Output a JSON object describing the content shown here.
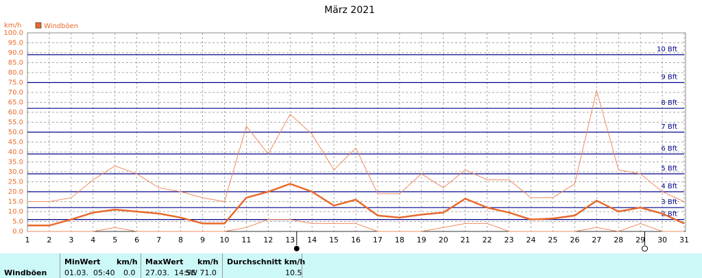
{
  "chart_data": {
    "type": "line",
    "title": "März 2021",
    "y_unit": "km/h",
    "x": [
      1,
      2,
      3,
      4,
      5,
      6,
      7,
      8,
      9,
      10,
      11,
      12,
      13,
      14,
      15,
      16,
      17,
      18,
      19,
      20,
      21,
      22,
      23,
      24,
      25,
      26,
      27,
      28,
      29,
      30,
      31
    ],
    "xlim": [
      1,
      31
    ],
    "xticks": [
      1,
      2,
      3,
      4,
      5,
      6,
      7,
      8,
      9,
      10,
      11,
      12,
      13,
      14,
      15,
      16,
      17,
      18,
      19,
      20,
      21,
      22,
      23,
      24,
      25,
      26,
      27,
      28,
      29,
      30,
      31
    ],
    "ylim": [
      0,
      100
    ],
    "yticks": [
      {
        "value": 0,
        "label": "0.0"
      },
      {
        "value": 5,
        "label": "5.0"
      },
      {
        "value": 10,
        "label": "10.0"
      },
      {
        "value": 15,
        "label": "15.0"
      },
      {
        "value": 20,
        "label": "20.0"
      },
      {
        "value": 25,
        "label": "25.0"
      },
      {
        "value": 30,
        "label": "30.0"
      },
      {
        "value": 35,
        "label": "35.0"
      },
      {
        "value": 40,
        "label": "40.0"
      },
      {
        "value": 45,
        "label": "45.0"
      },
      {
        "value": 50,
        "label": "50.0"
      },
      {
        "value": 55,
        "label": "55.0"
      },
      {
        "value": 60,
        "label": "60.0"
      },
      {
        "value": 65,
        "label": "65.0"
      },
      {
        "value": 70,
        "label": "70.0"
      },
      {
        "value": 75,
        "label": "75.0"
      },
      {
        "value": 80,
        "label": "80.0"
      },
      {
        "value": 85,
        "label": "85.0"
      },
      {
        "value": 90,
        "label": "90.0"
      },
      {
        "value": 95,
        "label": "95.0"
      },
      {
        "value": 100,
        "label": "100.0"
      }
    ],
    "grid": true,
    "beaufort": [
      {
        "value": 6,
        "label": "2 Bft"
      },
      {
        "value": 12,
        "label": "3 Bft"
      },
      {
        "value": 20,
        "label": "4 Bft"
      },
      {
        "value": 29,
        "label": "5 Bft"
      },
      {
        "value": 39,
        "label": "6 Bft"
      },
      {
        "value": 50,
        "label": "7 Bft"
      },
      {
        "value": 62,
        "label": "8 Bft"
      },
      {
        "value": 75,
        "label": "9 Bft"
      },
      {
        "value": 89,
        "label": "10 Bft"
      }
    ],
    "beaufort_color": "#00008b",
    "series": [
      {
        "color": "#f08a5d",
        "width": 1,
        "values": [
          15,
          15,
          17,
          26,
          33,
          29,
          22,
          20,
          17,
          15,
          53,
          39,
          59,
          49,
          31,
          42,
          19,
          19,
          29,
          22,
          31,
          26,
          26,
          17,
          17,
          24,
          71,
          31,
          29,
          20,
          15
        ]
      },
      {
        "name": "Windböen",
        "color": "#e8692a",
        "width": 2.5,
        "values": [
          3,
          3,
          6,
          9.5,
          11,
          10,
          9,
          7,
          4,
          4,
          17,
          20,
          24,
          20,
          13,
          16,
          8,
          7,
          8.5,
          9.5,
          16.5,
          12,
          9.5,
          6,
          6.5,
          8,
          15.5,
          10,
          12,
          9,
          4
        ]
      },
      {
        "color": "#f08a5d",
        "width": 1,
        "values": [
          0,
          0,
          0,
          0,
          2,
          0,
          0,
          0,
          0,
          0,
          2,
          6,
          6,
          4,
          4,
          4,
          0,
          0,
          0,
          2,
          4,
          4,
          0,
          0,
          0,
          0,
          2,
          0,
          4,
          0,
          0
        ]
      }
    ]
  },
  "table": {
    "row_label": "Windböen",
    "columns": [
      {
        "title": "MinWert",
        "unit": "km/h",
        "time": "01.03.  05:40",
        "value": "0.0"
      },
      {
        "title": "MaxWert",
        "unit": "km/h",
        "time": "27.03.  14:55",
        "value": "SW 71.0"
      },
      {
        "title": "Durchschnitt km/h",
        "value": "10.5"
      }
    ]
  }
}
